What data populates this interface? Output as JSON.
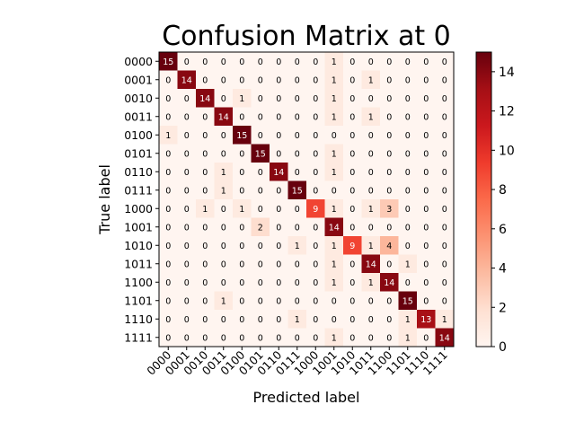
{
  "chart_data": {
    "type": "heatmap",
    "title": "Confusion Matrix at 0",
    "xlabel": "Predicted label",
    "ylabel": "True label",
    "x_categories": [
      "0000",
      "0001",
      "0010",
      "0011",
      "0100",
      "0101",
      "0110",
      "0111",
      "1000",
      "1001",
      "1010",
      "1011",
      "1100",
      "1101",
      "1110",
      "1111"
    ],
    "y_categories": [
      "0000",
      "0001",
      "0010",
      "0011",
      "0100",
      "0101",
      "0110",
      "0111",
      "1000",
      "1001",
      "1010",
      "1011",
      "1100",
      "1101",
      "1110",
      "1111"
    ],
    "matrix": [
      [
        15,
        0,
        0,
        0,
        0,
        0,
        0,
        0,
        0,
        1,
        0,
        0,
        0,
        0,
        0,
        0
      ],
      [
        0,
        14,
        0,
        0,
        0,
        0,
        0,
        0,
        0,
        1,
        0,
        1,
        0,
        0,
        0,
        0
      ],
      [
        0,
        0,
        14,
        0,
        1,
        0,
        0,
        0,
        0,
        1,
        0,
        0,
        0,
        0,
        0,
        0
      ],
      [
        0,
        0,
        0,
        14,
        0,
        0,
        0,
        0,
        0,
        1,
        0,
        1,
        0,
        0,
        0,
        0
      ],
      [
        1,
        0,
        0,
        0,
        15,
        0,
        0,
        0,
        0,
        0,
        0,
        0,
        0,
        0,
        0,
        0
      ],
      [
        0,
        0,
        0,
        0,
        0,
        15,
        0,
        0,
        0,
        1,
        0,
        0,
        0,
        0,
        0,
        0
      ],
      [
        0,
        0,
        0,
        1,
        0,
        0,
        14,
        0,
        0,
        1,
        0,
        0,
        0,
        0,
        0,
        0
      ],
      [
        0,
        0,
        0,
        1,
        0,
        0,
        0,
        15,
        0,
        0,
        0,
        0,
        0,
        0,
        0,
        0
      ],
      [
        0,
        0,
        1,
        0,
        1,
        0,
        0,
        0,
        9,
        1,
        0,
        1,
        3,
        0,
        0,
        0
      ],
      [
        0,
        0,
        0,
        0,
        0,
        2,
        0,
        0,
        0,
        14,
        0,
        0,
        0,
        0,
        0,
        0
      ],
      [
        0,
        0,
        0,
        0,
        0,
        0,
        0,
        1,
        0,
        1,
        9,
        1,
        4,
        0,
        0,
        0
      ],
      [
        0,
        0,
        0,
        0,
        0,
        0,
        0,
        0,
        0,
        1,
        0,
        14,
        0,
        1,
        0,
        0
      ],
      [
        0,
        0,
        0,
        0,
        0,
        0,
        0,
        0,
        0,
        1,
        0,
        1,
        14,
        0,
        0,
        0
      ],
      [
        0,
        0,
        0,
        1,
        0,
        0,
        0,
        0,
        0,
        0,
        0,
        0,
        0,
        15,
        0,
        0
      ],
      [
        0,
        0,
        0,
        0,
        0,
        0,
        0,
        1,
        0,
        0,
        0,
        0,
        0,
        1,
        13,
        1
      ],
      [
        0,
        0,
        0,
        0,
        0,
        0,
        0,
        0,
        0,
        1,
        0,
        0,
        0,
        1,
        0,
        14
      ]
    ],
    "colormap": "Reds",
    "color_range": [
      0,
      15
    ],
    "colorbar_ticks": [
      0,
      2,
      4,
      6,
      8,
      10,
      12,
      14
    ],
    "colors": {
      "low": "#fff5f0",
      "high": "#67000d"
    }
  }
}
